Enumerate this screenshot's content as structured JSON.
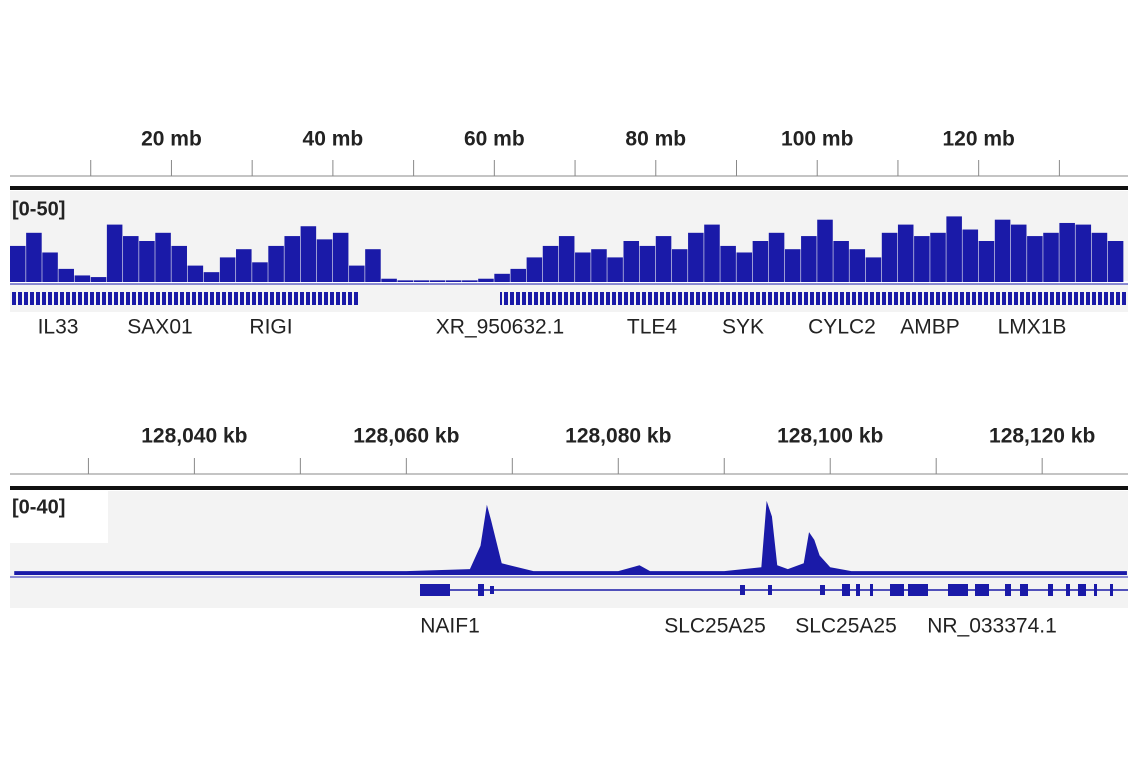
{
  "panels": [
    {
      "ruler": {
        "xlim": [
          0,
          138.5
        ],
        "xticks": [
          {
            "value": 20,
            "label": "20 mb"
          },
          {
            "value": 40,
            "label": "40 mb"
          },
          {
            "value": 60,
            "label": "60 mb"
          },
          {
            "value": 80,
            "label": "80 mb"
          },
          {
            "value": 100,
            "label": "100 mb"
          },
          {
            "value": 120,
            "label": "120 mb"
          }
        ],
        "minor_xticks": [
          10,
          30,
          50,
          70,
          90,
          110,
          130
        ]
      },
      "track": {
        "range_label": "[0-50]",
        "ylim": [
          0,
          50
        ],
        "color": "#1a1aa8",
        "bins": [
          0,
          2,
          4,
          6,
          8,
          10,
          12,
          14,
          16,
          18,
          20,
          22,
          24,
          26,
          28,
          30,
          32,
          34,
          36,
          38,
          40,
          42,
          44,
          46,
          48,
          50,
          52,
          54,
          56,
          58,
          60,
          62,
          64,
          66,
          68,
          70,
          72,
          74,
          76,
          78,
          80,
          82,
          84,
          86,
          88,
          90,
          92,
          94,
          96,
          98,
          100,
          102,
          104,
          106,
          108,
          110,
          112,
          114,
          116,
          118,
          120,
          122,
          124,
          126,
          128,
          130,
          132,
          134,
          136,
          138
        ],
        "values": [
          22,
          30,
          18,
          8,
          4,
          3,
          35,
          28,
          25,
          30,
          22,
          10,
          6,
          15,
          20,
          12,
          22,
          28,
          34,
          26,
          30,
          10,
          20,
          2,
          1,
          1,
          1,
          1,
          1,
          2,
          5,
          8,
          15,
          22,
          28,
          18,
          20,
          15,
          25,
          22,
          28,
          20,
          30,
          35,
          22,
          18,
          25,
          30,
          20,
          28,
          38,
          25,
          20,
          15,
          30,
          35,
          28,
          30,
          40,
          32,
          25,
          38,
          35,
          28,
          30,
          36,
          35,
          30,
          25
        ]
      },
      "genes": [
        "IL33",
        "SAX01",
        "RIGI",
        "XR_950632.1",
        "TLE4",
        "SYK",
        "CYLC2",
        "AMBP",
        "LMX1B"
      ]
    },
    {
      "ruler": {
        "xlim": [
          128022.6,
          128128.1
        ],
        "xticks": [
          {
            "value": 128040,
            "label": "128,040 kb"
          },
          {
            "value": 128060,
            "label": "128,060 kb"
          },
          {
            "value": 128080,
            "label": "128,080 kb"
          },
          {
            "value": 128100,
            "label": "128,100 kb"
          },
          {
            "value": 128120,
            "label": "128,120 kb"
          }
        ],
        "minor_xticks": [
          128030,
          128050,
          128070,
          128090,
          128110
        ]
      },
      "track": {
        "range_label": "[0-40]",
        "ylim": [
          0,
          40
        ],
        "color": "#1a1aa8",
        "x": [
          128023,
          128040,
          128060,
          128066,
          128067,
          128067.6,
          128068,
          128069,
          128072,
          128080,
          128082,
          128083,
          128090,
          128093.5,
          128094,
          128094.5,
          128095,
          128096,
          128097.5,
          128098,
          128098.5,
          128099,
          128100,
          128102,
          128110,
          128125,
          128128
        ],
        "values": [
          2,
          2,
          2,
          3,
          15,
          36,
          28,
          6,
          2,
          2,
          5,
          2,
          2,
          4,
          38,
          30,
          5,
          3,
          6,
          22,
          18,
          10,
          4,
          2,
          2,
          2,
          2
        ]
      },
      "genes": [
        "NAIF1",
        "SLC25A25",
        "SLC25A25",
        "NR_033374.1"
      ]
    }
  ]
}
